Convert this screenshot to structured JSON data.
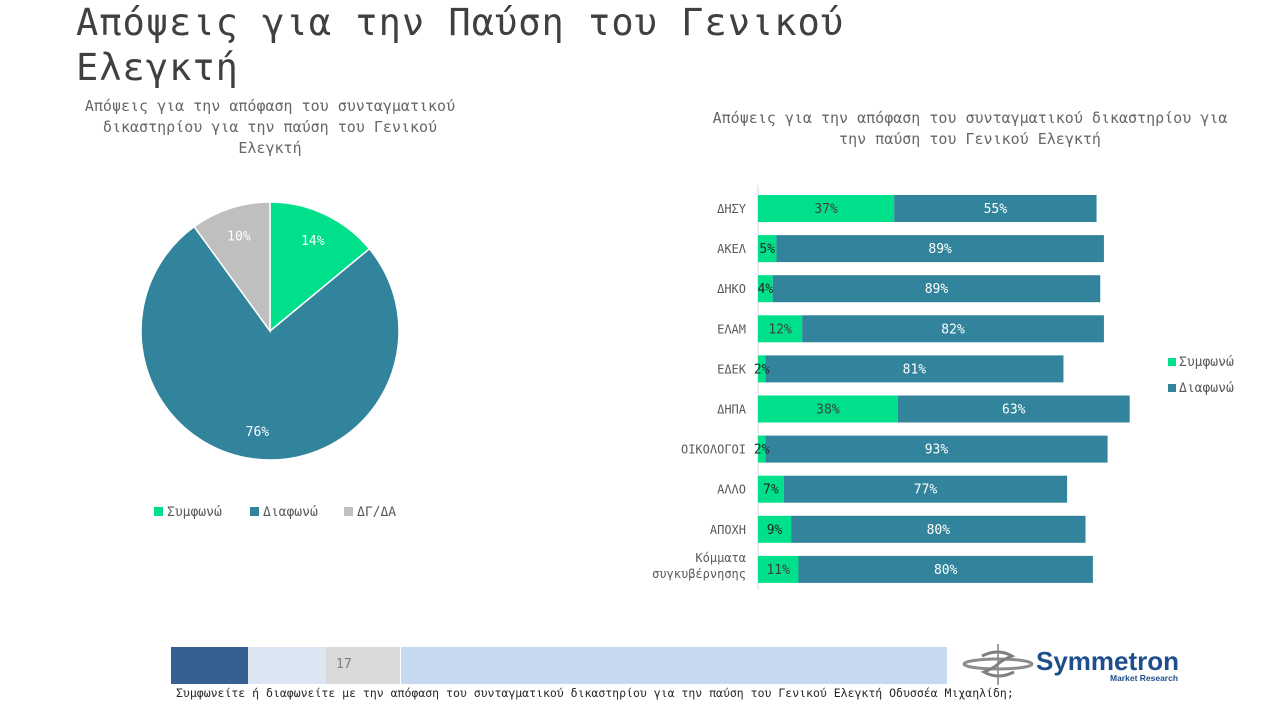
{
  "slide": {
    "title": "Απόψεις για την Παύση του Γενικού Ελεγκτή",
    "page_number": "17",
    "question": "Συμφωνείτε ή διαφωνείτε με την απόφαση του συνταγματικού δικαστηρίου για την παύση του Γενικού Ελεγκτή Οδυσσέα Μιχαηλίδη;",
    "logo": {
      "name": "Symmetron",
      "subtitle": "Market Research"
    }
  },
  "colors": {
    "agree": "#00e08a",
    "disagree": "#31849b",
    "dk": "#bfbfbf"
  },
  "chart_data": [
    {
      "type": "pie",
      "title": "Απόψεις για την απόφαση του συνταγματικού δικαστηρίου για την παύση του Γενικού Ελεγκτή",
      "categories": [
        "Συμφωνώ",
        "Διαφωνώ",
        "ΔΓ/ΔΑ"
      ],
      "values": [
        14,
        76,
        10
      ],
      "labels": [
        "14%",
        "76%",
        "10%"
      ],
      "legend_position": "bottom"
    },
    {
      "type": "bar",
      "orientation": "horizontal",
      "stacked": true,
      "title": "Απόψεις για την απόφαση του συνταγματικού δικαστηρίου για την παύση του Γενικού Ελεγκτή",
      "categories": [
        "ΔΗΣΥ",
        "ΑΚΕΛ",
        "ΔΗΚΟ",
        "ΕΛΑΜ",
        "ΕΔΕΚ",
        "ΔΗΠΑ",
        "ΟΙΚΟΛΟΓΟΙ",
        "ΑΛΛΟ",
        "ΑΠΟΧΗ",
        "Κόμματα συγκυβέρνησης"
      ],
      "series": [
        {
          "name": "Συμφωνώ",
          "values": [
            37,
            5,
            4,
            12,
            2,
            38,
            2,
            7,
            9,
            11
          ],
          "labels": [
            "37%",
            "5%",
            "4%",
            "12%",
            "2%",
            "38%",
            "2%",
            "7%",
            "9%",
            "11%"
          ]
        },
        {
          "name": "Διαφωνώ",
          "values": [
            55,
            89,
            89,
            82,
            81,
            63,
            93,
            77,
            80,
            80
          ],
          "labels": [
            "55%",
            "89%",
            "89%",
            "82%",
            "81%",
            "63%",
            "93%",
            "77%",
            "80%",
            "80%"
          ]
        }
      ],
      "legend_position": "right"
    }
  ]
}
